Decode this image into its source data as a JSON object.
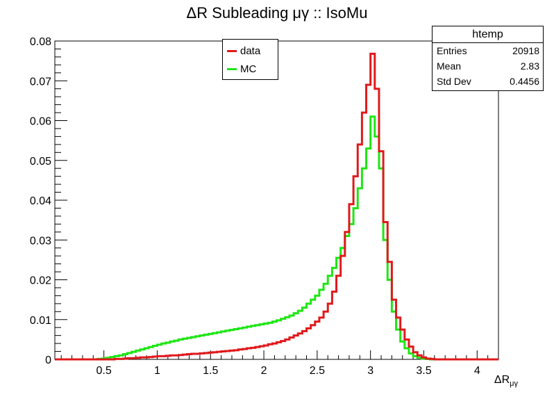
{
  "title": "ΔR Subleading μγ :: IsoMu",
  "legend": [
    {
      "label": "data",
      "color": "#e0191b"
    },
    {
      "label": "MC",
      "color": "#1ee614"
    }
  ],
  "stats": {
    "title": "htemp",
    "rows": [
      {
        "label": "Entries",
        "value": "20918"
      },
      {
        "label": "Mean",
        "value": "2.83"
      },
      {
        "label": "Std Dev",
        "value": "0.4456"
      }
    ]
  },
  "xlabel": {
    "main": "ΔR",
    "sub": "μγ"
  },
  "chart_data": {
    "type": "histogram",
    "xlim": [
      0.04,
      4.2
    ],
    "ylim": [
      0,
      0.08
    ],
    "bin_width": 0.04,
    "x_ticks": [
      0.5,
      1,
      1.5,
      2,
      2.5,
      3,
      3.5,
      4
    ],
    "x_tick_labels": [
      "0.5",
      "1",
      "1.5",
      "2",
      "2.5",
      "3",
      "3.5",
      "4"
    ],
    "y_ticks": [
      0,
      0.01,
      0.02,
      0.03,
      0.04,
      0.05,
      0.06,
      0.07,
      0.08
    ],
    "y_tick_labels": [
      "0",
      "0.01",
      "0.02",
      "0.03",
      "0.04",
      "0.05",
      "0.06",
      "0.07",
      "0.08"
    ],
    "series": [
      {
        "name": "data",
        "color": "#e0191b",
        "values": [
          0,
          0,
          0,
          0,
          0,
          0,
          0,
          0,
          0,
          0,
          0,
          0,
          0,
          0,
          0.0001,
          0.0001,
          0.0002,
          0.0003,
          0.0003,
          0.0004,
          0.0005,
          0.0005,
          0.0006,
          0.0007,
          0.0008,
          0.0008,
          0.0009,
          0.001,
          0.001,
          0.0011,
          0.0012,
          0.0013,
          0.0014,
          0.0014,
          0.0015,
          0.0016,
          0.0017,
          0.0018,
          0.0019,
          0.002,
          0.0021,
          0.0022,
          0.0023,
          0.0025,
          0.0026,
          0.0028,
          0.0029,
          0.0031,
          0.0033,
          0.0035,
          0.0038,
          0.004,
          0.0043,
          0.0046,
          0.005,
          0.0055,
          0.006,
          0.0065,
          0.0071,
          0.0078,
          0.0086,
          0.0095,
          0.0105,
          0.012,
          0.014,
          0.017,
          0.021,
          0.026,
          0.032,
          0.039,
          0.046,
          0.054,
          0.062,
          0.069,
          0.0768,
          0.068,
          0.0523,
          0.0345,
          0.0245,
          0.015,
          0.0105,
          0.0075,
          0.005,
          0.0032,
          0.0018,
          0.001,
          0.0005,
          0.0002,
          0.0001,
          0,
          0,
          0,
          0,
          0,
          0,
          0,
          0,
          0,
          0,
          0,
          0,
          0,
          0,
          0
        ]
      },
      {
        "name": "MC",
        "color": "#1ee614",
        "values": [
          0,
          0,
          0,
          0,
          0,
          0,
          0,
          0,
          0,
          0,
          0.0001,
          0.0002,
          0.0004,
          0.0006,
          0.0008,
          0.001,
          0.0013,
          0.0016,
          0.0019,
          0.0022,
          0.0025,
          0.0028,
          0.0031,
          0.0034,
          0.0037,
          0.004,
          0.0042,
          0.0045,
          0.0047,
          0.005,
          0.0052,
          0.0054,
          0.0056,
          0.0058,
          0.006,
          0.0062,
          0.0064,
          0.0066,
          0.0068,
          0.007,
          0.0072,
          0.0074,
          0.0076,
          0.0078,
          0.008,
          0.0082,
          0.0084,
          0.0086,
          0.0088,
          0.009,
          0.0092,
          0.0095,
          0.0098,
          0.0102,
          0.0106,
          0.011,
          0.0116,
          0.0122,
          0.013,
          0.014,
          0.015,
          0.016,
          0.0175,
          0.019,
          0.021,
          0.023,
          0.0255,
          0.028,
          0.031,
          0.034,
          0.038,
          0.043,
          0.048,
          0.053,
          0.061,
          0.056,
          0.048,
          0.03,
          0.02,
          0.012,
          0.0075,
          0.0045,
          0.0028,
          0.0015,
          0.0008,
          0.0004,
          0.0002,
          0.0001,
          0,
          0,
          0,
          0,
          0,
          0,
          0,
          0,
          0,
          0,
          0,
          0,
          0,
          0,
          0,
          0
        ]
      }
    ]
  }
}
